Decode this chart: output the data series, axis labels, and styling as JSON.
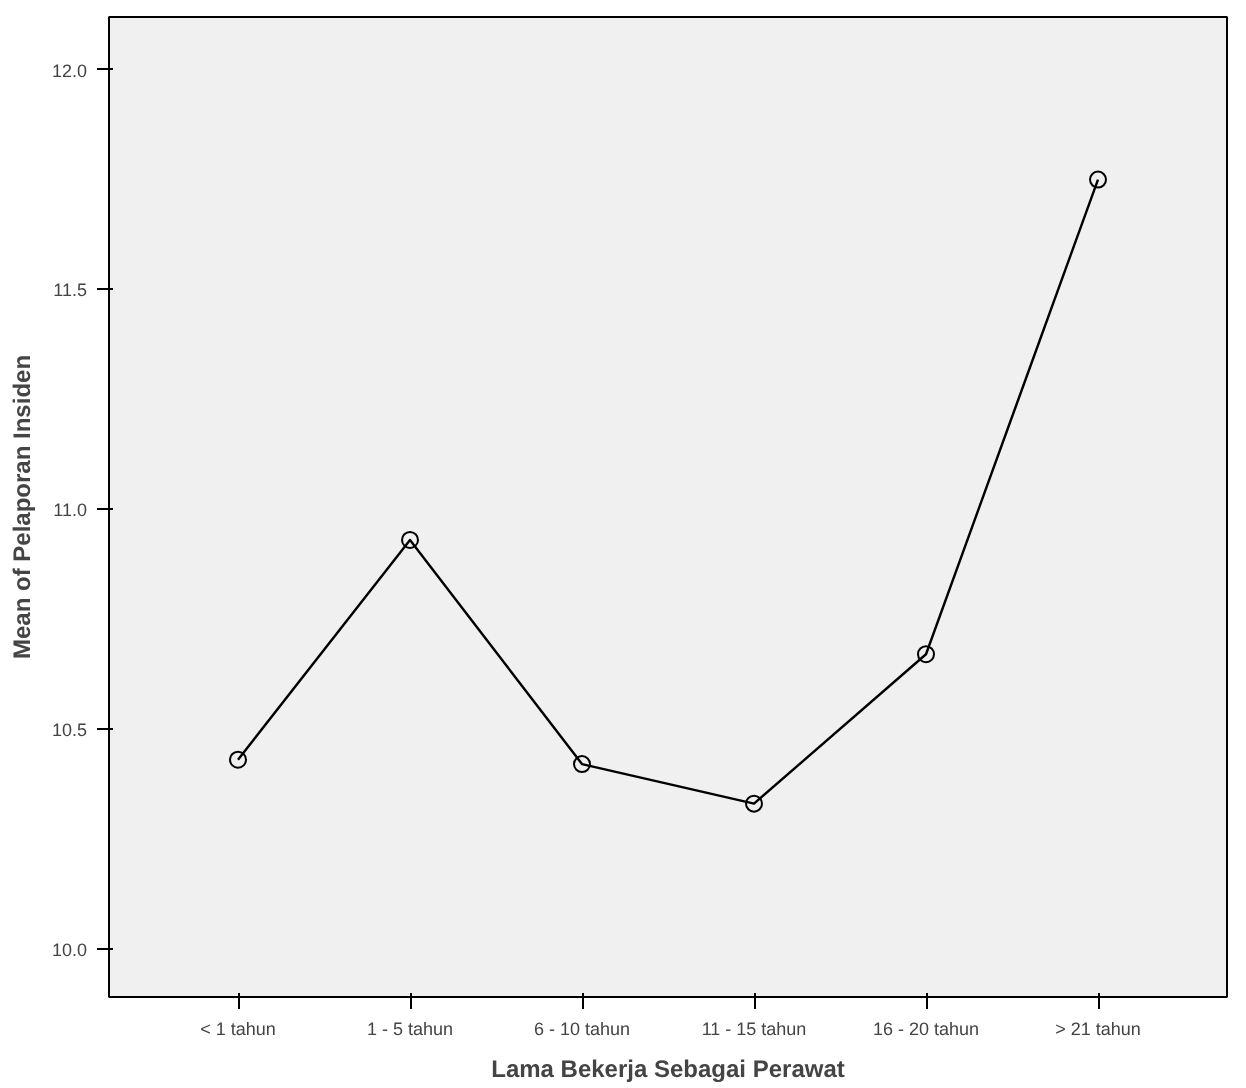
{
  "chart_data": {
    "type": "line",
    "xlabel": "Lama Bekerja Sebagai Perawat",
    "ylabel": "Mean of Pelaporan Insiden",
    "categories": [
      "< 1 tahun",
      "1 - 5 tahun",
      "6 - 10 tahun",
      "11 - 15 tahun",
      "16 - 20 tahun",
      "> 21 tahun"
    ],
    "series": [
      {
        "color": "#000000",
        "values": [
          10.43,
          10.93,
          10.42,
          10.33,
          10.67,
          11.75
        ]
      }
    ],
    "ylim": [
      9.89,
      12.12
    ],
    "yticks": [
      {
        "value": 10.0,
        "label": "10.0"
      },
      {
        "value": 10.5,
        "label": "10.5"
      },
      {
        "value": 11.0,
        "label": "11.0"
      },
      {
        "value": 11.5,
        "label": "11.5"
      },
      {
        "value": 12.0,
        "label": "12.0"
      }
    ],
    "marker": "circle",
    "line_style": "solid"
  }
}
